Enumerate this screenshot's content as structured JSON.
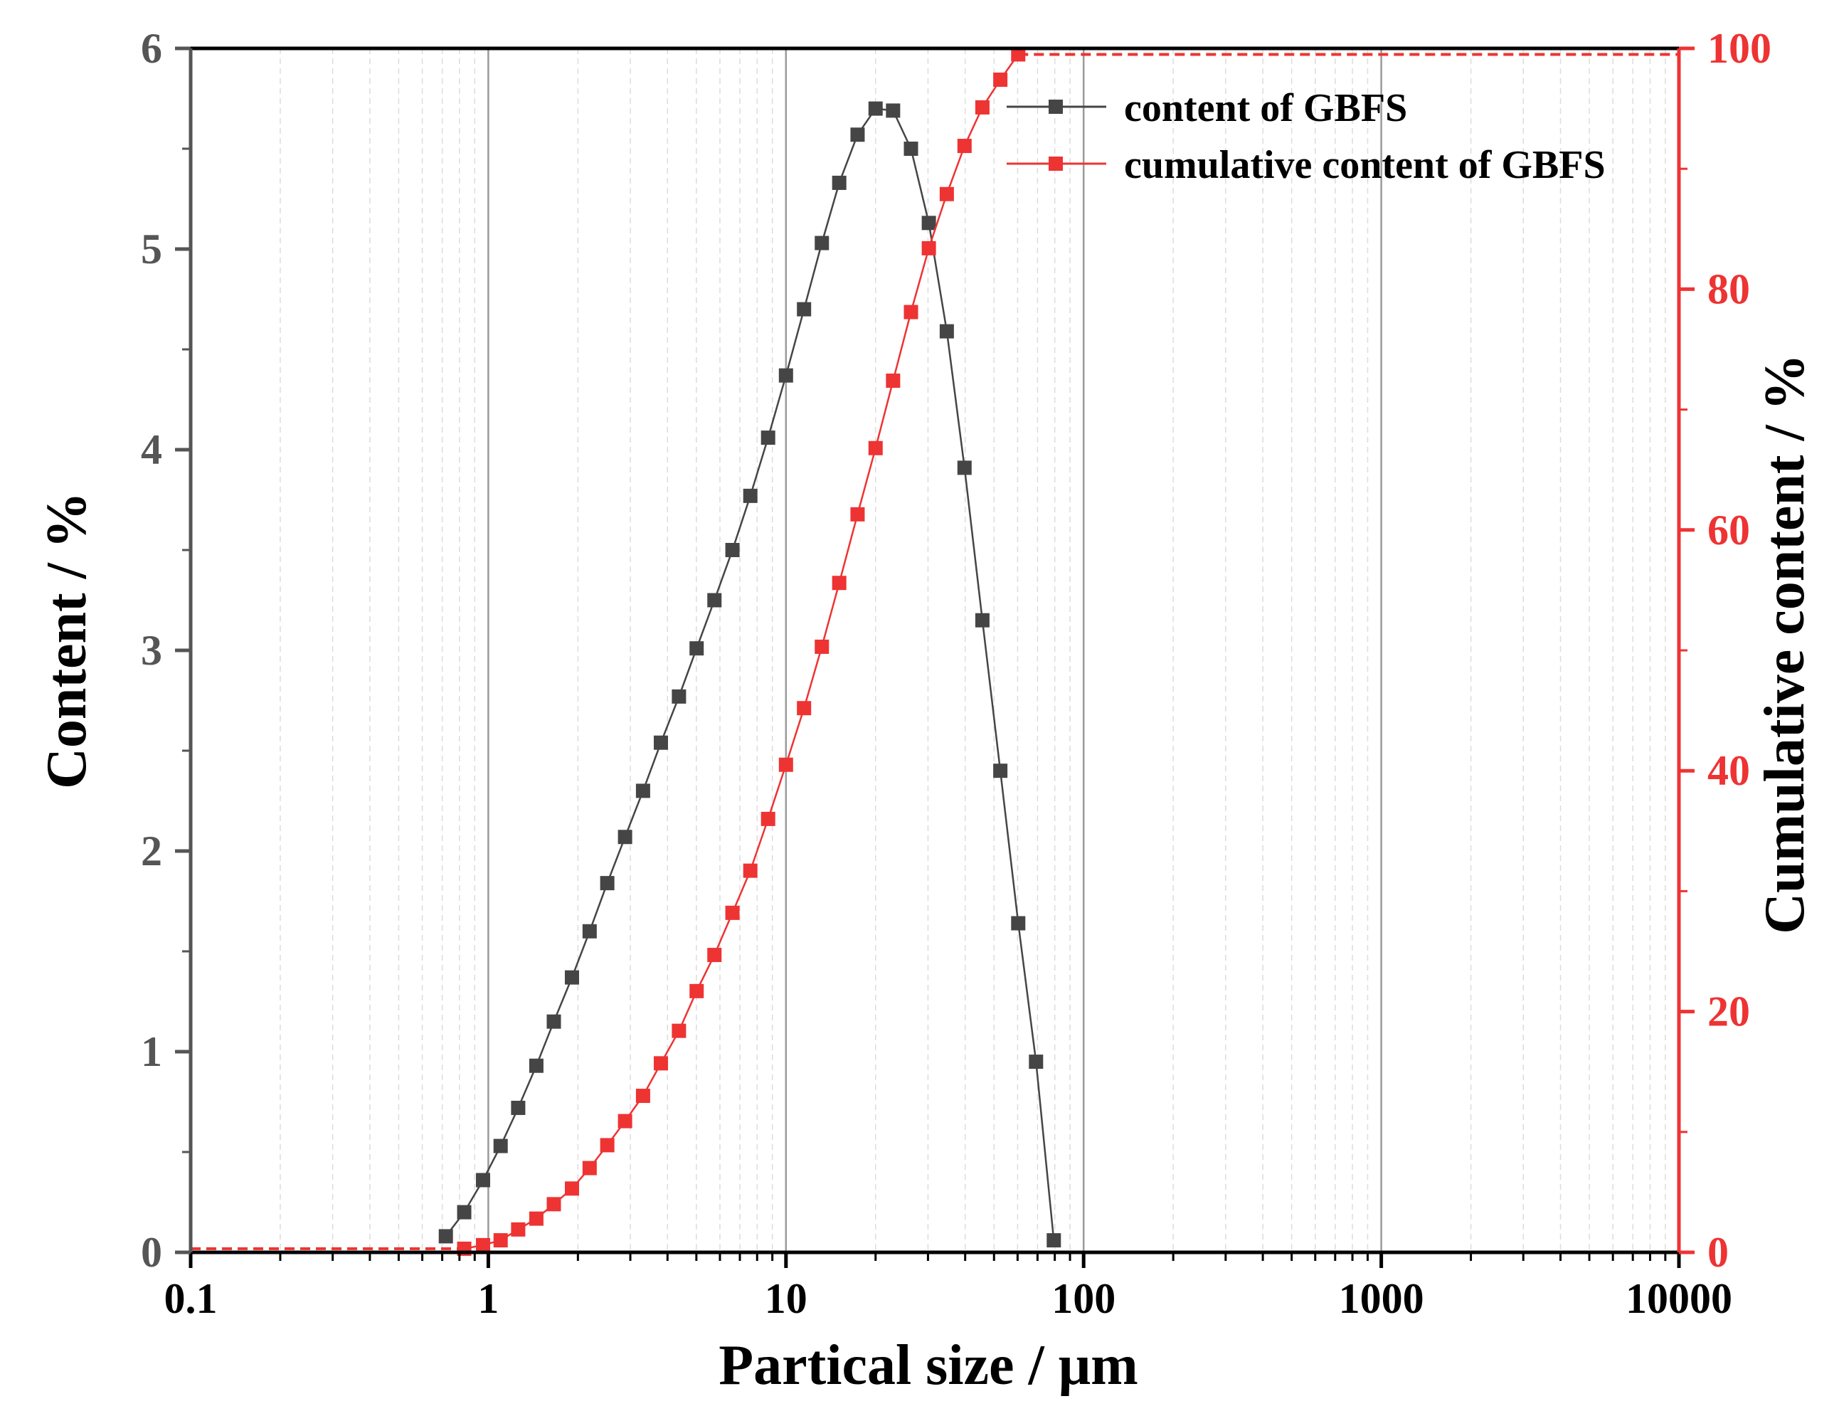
{
  "chart_data": {
    "type": "line",
    "x_scale": "log",
    "xlabel": "Partical size / μm",
    "ylabel_left": "Content / %",
    "ylabel_right": "Cumulative content / %",
    "xlim": [
      0.1,
      10000
    ],
    "ylim_left": [
      0,
      6
    ],
    "ylim_right": [
      0,
      100
    ],
    "x_ticks": [
      0.1,
      1,
      10,
      100,
      1000,
      10000
    ],
    "x_tick_labels": [
      "0.1",
      "1",
      "10",
      "100",
      "1000",
      "10000"
    ],
    "y_left_ticks": [
      0,
      1,
      2,
      3,
      4,
      5,
      6
    ],
    "y_left_tick_labels": [
      "0",
      "1",
      "2",
      "3",
      "4",
      "5",
      "6"
    ],
    "y_right_ticks": [
      0,
      20,
      40,
      60,
      80,
      100
    ],
    "y_right_tick_labels": [
      "0",
      "20",
      "40",
      "60",
      "80",
      "100"
    ],
    "grid": "vertical-log",
    "legend_position": "top-right",
    "colors": {
      "content": "#454545",
      "cumulative": "#ee3333",
      "right_axis": "#ee3333",
      "left_axis": "#555555"
    },
    "series": [
      {
        "name": "content of GBFS",
        "axis": "left",
        "x": [
          0.72,
          0.83,
          0.96,
          1.1,
          1.26,
          1.45,
          1.66,
          1.91,
          2.19,
          2.51,
          2.88,
          3.31,
          3.8,
          4.37,
          5.01,
          5.75,
          6.61,
          7.59,
          8.71,
          10.0,
          11.5,
          13.2,
          15.1,
          17.4,
          20.0,
          22.9,
          26.3,
          30.2,
          34.7,
          39.8,
          45.7,
          52.5,
          60.3,
          69.2,
          79.4
        ],
        "values": [
          0.08,
          0.2,
          0.36,
          0.53,
          0.72,
          0.93,
          1.15,
          1.37,
          1.6,
          1.84,
          2.07,
          2.3,
          2.54,
          2.77,
          3.01,
          3.25,
          3.5,
          3.77,
          4.06,
          4.37,
          4.7,
          5.03,
          5.33,
          5.57,
          5.7,
          5.69,
          5.5,
          5.13,
          4.59,
          3.91,
          3.15,
          2.4,
          1.64,
          0.95,
          0.06
        ]
      },
      {
        "name": "cumulative content of GBFS",
        "axis": "right",
        "x": [
          0.83,
          0.96,
          1.1,
          1.26,
          1.45,
          1.66,
          1.91,
          2.19,
          2.51,
          2.88,
          3.31,
          3.8,
          4.37,
          5.01,
          5.75,
          6.61,
          7.59,
          8.71,
          10.0,
          11.5,
          13.2,
          15.1,
          17.4,
          20.0,
          22.9,
          26.3,
          30.2,
          34.7,
          39.8,
          45.7,
          52.5,
          60.3
        ],
        "values": [
          0.3,
          0.6,
          1.0,
          1.9,
          2.8,
          4.0,
          5.3,
          7.0,
          8.9,
          10.9,
          13.0,
          15.7,
          18.4,
          21.7,
          24.7,
          28.2,
          31.7,
          36.0,
          40.5,
          45.2,
          50.3,
          55.6,
          61.3,
          66.8,
          72.4,
          78.1,
          83.4,
          87.9,
          91.9,
          95.1,
          97.4,
          99.5
        ]
      }
    ]
  }
}
